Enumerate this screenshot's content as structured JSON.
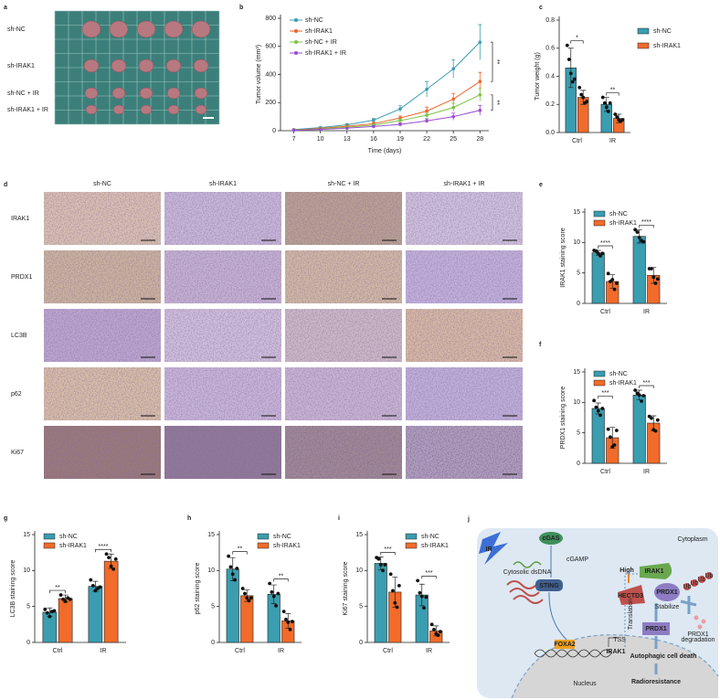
{
  "panel_a": {
    "panel": "a",
    "row_labels": [
      "sh-NC",
      "sh-IRAK1",
      "sh-NC + IR",
      "sh-IRAK1 + IR"
    ]
  },
  "panel_d": {
    "panel": "d",
    "columns": [
      "sh-NC",
      "sh-IRAK1",
      "sh-NC + IR",
      "sh-IRAK1 + IR"
    ],
    "rows": [
      "IRAK1",
      "PRDX1",
      "LC3B",
      "p62",
      "Ki67"
    ]
  },
  "panel_j": {
    "panel": "j",
    "labels": [
      "IR",
      "Cytosolic dsDNA",
      "cGAMP",
      "cGAS",
      "STING",
      "Cytoplasm",
      "FOXA2",
      "TSS",
      "IRAK1",
      "Translation",
      "Nucleus",
      "High",
      "IRAK1",
      "HECTD3",
      "PRDX1",
      "Ub",
      "Ub",
      "Ub",
      "Ub",
      "Stabilize",
      "PRDX1",
      "Autophagic cell death",
      "Radioresistance",
      "PRDX1",
      "degradation"
    ]
  },
  "chart_data": [
    {
      "panel": "b",
      "type": "line",
      "x": [
        7,
        10,
        13,
        16,
        19,
        22,
        25,
        28
      ],
      "xlim": [
        5.5,
        29
      ],
      "xticks": [
        7,
        10,
        13,
        16,
        19,
        22,
        25,
        28
      ],
      "ylim": [
        0,
        800
      ],
      "yticks": [
        0,
        200,
        400,
        600,
        800
      ],
      "xlabel": "Time (days)",
      "ylabel": "Tumor volume (mm³)",
      "legend": "upper left",
      "significance": [
        "**",
        "**"
      ],
      "series": [
        {
          "name": "sh-NC",
          "color": "#3a9db0",
          "values": [
            8,
            22,
            42,
            75,
            155,
            295,
            440,
            630
          ],
          "errors": [
            3,
            5,
            8,
            12,
            22,
            55,
            65,
            125
          ]
        },
        {
          "name": "sh-IRAK1",
          "color": "#f0642a",
          "values": [
            5,
            16,
            32,
            50,
            90,
            140,
            225,
            350
          ],
          "errors": [
            2,
            4,
            6,
            10,
            15,
            28,
            40,
            65
          ]
        },
        {
          "name": "sh-NC + IR",
          "color": "#7cc242",
          "values": [
            4,
            12,
            25,
            40,
            72,
            110,
            165,
            255
          ],
          "errors": [
            2,
            3,
            5,
            8,
            12,
            20,
            30,
            45
          ]
        },
        {
          "name": "sh-IRAK1 + IR",
          "color": "#9a4fd0",
          "values": [
            3,
            9,
            18,
            30,
            45,
            70,
            100,
            145
          ],
          "errors": [
            2,
            3,
            4,
            6,
            10,
            15,
            25,
            35
          ]
        }
      ]
    },
    {
      "panel": "c",
      "type": "bar",
      "categories": [
        "Ctrl",
        "IR"
      ],
      "ylim": [
        0,
        0.8
      ],
      "yticks": [
        {
          "value": 0,
          "label": "0.0"
        },
        0.2,
        0.4,
        0.6,
        0.8
      ],
      "ylabel": "Tumor weight (g)",
      "legend": "outside right",
      "significance": [
        "*",
        "**"
      ],
      "series": [
        {
          "name": "sh-NC",
          "color": "#3a9db0",
          "values": [
            0.46,
            0.2
          ],
          "errors": [
            0.14,
            0.05
          ],
          "points": [
            [
              0.62,
              0.52,
              0.42,
              0.36,
              0.38
            ],
            [
              0.25,
              0.21,
              0.18,
              0.15,
              0.21
            ]
          ]
        },
        {
          "name": "sh-IRAK1",
          "color": "#f26b2a",
          "values": [
            0.25,
            0.1
          ],
          "errors": [
            0.05,
            0.03
          ],
          "points": [
            [
              0.32,
              0.27,
              0.25,
              0.21,
              0.22
            ],
            [
              0.13,
              0.11,
              0.09,
              0.08,
              0.09
            ]
          ]
        }
      ]
    },
    {
      "panel": "e",
      "type": "bar",
      "categories": [
        "Ctrl",
        "IR"
      ],
      "ylim": [
        0,
        15
      ],
      "yticks": [
        0,
        5,
        10,
        15
      ],
      "ylabel": "IRAK1 staining score",
      "legend": "upper left",
      "significance": [
        "****",
        "****"
      ],
      "series": [
        {
          "name": "sh-NC",
          "color": "#3a9db0",
          "values": [
            8.3,
            11.0
          ],
          "errors": [
            0.4,
            1.1
          ],
          "points": [
            [
              8.7,
              8.6,
              8.2,
              7.8,
              8.2
            ],
            [
              12.1,
              11.7,
              10.8,
              10.3,
              10.1
            ]
          ]
        },
        {
          "name": "sh-IRAK1",
          "color": "#f26b2a",
          "values": [
            3.6,
            4.6
          ],
          "errors": [
            1.1,
            1.3
          ],
          "points": [
            [
              4.9,
              3.6,
              3.9,
              2.3,
              3.3
            ],
            [
              5.7,
              5.7,
              4.3,
              3.3,
              4.0
            ]
          ]
        }
      ]
    },
    {
      "panel": "f",
      "type": "bar",
      "categories": [
        "Ctrl",
        "IR"
      ],
      "ylim": [
        0,
        15
      ],
      "yticks": [
        0,
        5,
        10,
        15
      ],
      "ylabel": "PRDX1 staining score",
      "legend": "upper left",
      "significance": [
        "***",
        "***"
      ],
      "series": [
        {
          "name": "sh-NC",
          "color": "#3a9db0",
          "values": [
            9.0,
            11.2
          ],
          "errors": [
            0.9,
            0.8
          ],
          "points": [
            [
              10.3,
              9.2,
              8.6,
              7.9,
              9.0
            ],
            [
              12.0,
              11.5,
              11.2,
              10.2,
              11.1
            ]
          ]
        },
        {
          "name": "sh-IRAK1",
          "color": "#f26b2a",
          "values": [
            4.2,
            6.6
          ],
          "errors": [
            1.7,
            1.2
          ],
          "points": [
            [
              5.6,
              4.3,
              2.7,
              3.0,
              5.4
            ],
            [
              7.7,
              7.4,
              5.5,
              5.3,
              7.1
            ]
          ]
        }
      ]
    },
    {
      "panel": "g",
      "type": "bar",
      "categories": [
        "Ctrl",
        "IR"
      ],
      "ylim": [
        0,
        15
      ],
      "yticks": [
        0,
        5,
        10,
        15
      ],
      "ylabel": "LC3B staining score",
      "legend": "upper left",
      "significance": [
        "**",
        "****"
      ],
      "series": [
        {
          "name": "sh-NC",
          "color": "#3a9db0",
          "values": [
            4.2,
            7.8
          ],
          "errors": [
            0.6,
            0.7
          ],
          "points": [
            [
              4.6,
              4.1,
              3.6,
              4.3,
              4.4
            ],
            [
              8.7,
              7.9,
              7.2,
              7.5,
              7.7
            ]
          ]
        },
        {
          "name": "sh-IRAK1",
          "color": "#f26b2a",
          "values": [
            6.1,
            11.3
          ],
          "errors": [
            0.5,
            1.0
          ],
          "points": [
            [
              6.6,
              6.0,
              5.7,
              6.2,
              6.0
            ],
            [
              12.3,
              11.8,
              10.6,
              10.2,
              11.6
            ]
          ]
        }
      ]
    },
    {
      "panel": "h",
      "type": "bar",
      "categories": [
        "Ctrl",
        "IR"
      ],
      "ylim": [
        0,
        15
      ],
      "yticks": [
        0,
        5,
        10,
        15
      ],
      "ylabel": "p62 staining score",
      "legend": "upper right",
      "significance": [
        "**",
        "**"
      ],
      "series": [
        {
          "name": "sh-NC",
          "color": "#3a9db0",
          "values": [
            10.2,
            6.7
          ],
          "errors": [
            1.6,
            1.3
          ],
          "points": [
            [
              12.0,
              10.5,
              9.5,
              8.7,
              10.3
            ],
            [
              8.2,
              7.0,
              6.4,
              5.1,
              6.8
            ]
          ]
        },
        {
          "name": "sh-IRAK1",
          "color": "#f26b2a",
          "values": [
            6.5,
            3.0
          ],
          "errors": [
            0.8,
            1.0
          ],
          "points": [
            [
              7.5,
              6.8,
              6.2,
              5.8,
              6.2
            ],
            [
              4.3,
              3.2,
              2.8,
              1.8,
              2.9
            ]
          ]
        }
      ]
    },
    {
      "panel": "i",
      "type": "bar",
      "categories": [
        "Ctrl",
        "IR"
      ],
      "ylim": [
        0,
        15
      ],
      "yticks": [
        0,
        5,
        10,
        15
      ],
      "ylabel": "Ki67 staining score",
      "legend": "upper right",
      "significance": [
        "***",
        "***"
      ],
      "series": [
        {
          "name": "sh-NC",
          "color": "#3a9db0",
          "values": [
            11.0,
            6.6
          ],
          "errors": [
            0.9,
            1.5
          ],
          "points": [
            [
              11.8,
              11.6,
              10.8,
              10.0,
              10.8
            ],
            [
              8.6,
              6.9,
              6.4,
              4.8,
              6.3
            ]
          ]
        },
        {
          "name": "sh-IRAK1",
          "color": "#f26b2a",
          "values": [
            7.0,
            1.6
          ],
          "errors": [
            2.1,
            0.7
          ],
          "points": [
            [
              9.5,
              7.2,
              5.5,
              4.9,
              7.9
            ],
            [
              2.5,
              1.8,
              1.2,
              1.0,
              1.5
            ]
          ]
        }
      ]
    }
  ]
}
